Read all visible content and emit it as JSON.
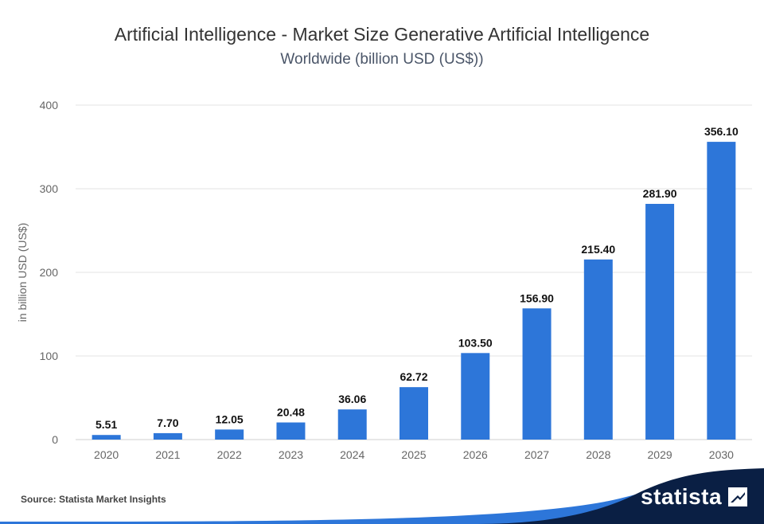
{
  "title": "Artificial Intelligence - Market Size Generative Artificial Intelligence",
  "subtitle": "Worldwide (billion USD (US$))",
  "source": "Source: Statista Market Insights",
  "brand": "statista",
  "colors": {
    "bar": "#2d76d9",
    "grid": "#e3e3e3",
    "footer_dark": "#0a1f44",
    "footer_accent": "#2d76d9"
  },
  "chart_data": {
    "type": "bar",
    "categories": [
      "2020",
      "2021",
      "2022",
      "2023",
      "2024",
      "2025",
      "2026",
      "2027",
      "2028",
      "2029",
      "2030"
    ],
    "values": [
      5.51,
      7.7,
      12.05,
      20.48,
      36.06,
      62.72,
      103.5,
      156.9,
      215.4,
      281.9,
      356.1
    ],
    "data_labels": [
      "5.51",
      "7.70",
      "12.05",
      "20.48",
      "36.06",
      "62.72",
      "103.50",
      "156.90",
      "215.40",
      "281.90",
      "356.10"
    ],
    "ylabel": "in billion USD (US$)",
    "ylim": [
      0,
      400
    ],
    "yticks": [
      0,
      100,
      200,
      300,
      400
    ],
    "grid": true
  }
}
